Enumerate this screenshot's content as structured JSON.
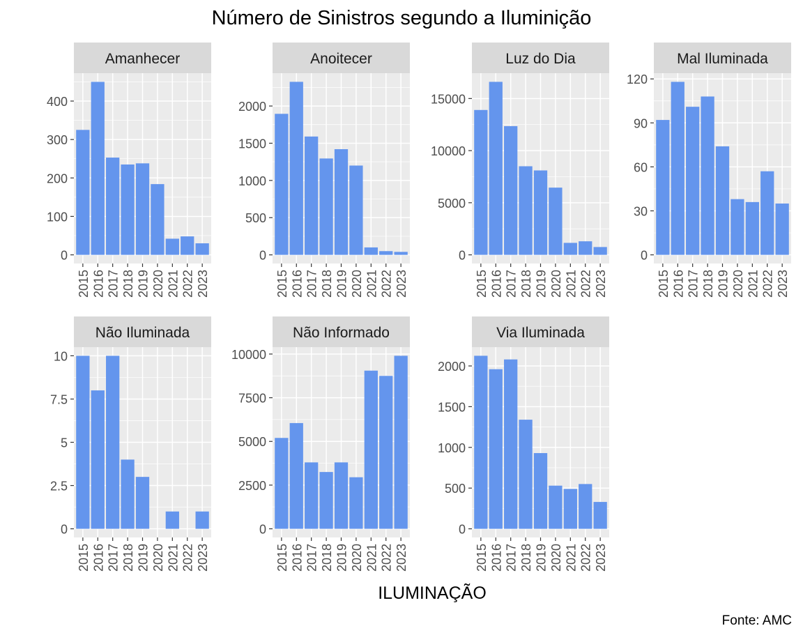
{
  "chart_data": {
    "type": "bar",
    "title": "Número de Sinistros segundo a Iluminição",
    "xlabel": "ILUMINAÇÃO",
    "ylabel": "",
    "caption": "Fonte: AMC",
    "categories": [
      "2015",
      "2016",
      "2017",
      "2018",
      "2019",
      "2020",
      "2021",
      "2022",
      "2023"
    ],
    "bar_color": "#6495ED",
    "panel_background": "#EBEBEB",
    "strip_background": "#D9D9D9",
    "grid": true,
    "facets": [
      {
        "name": "Amanhecer",
        "values": [
          325,
          450,
          253,
          235,
          238,
          184,
          42,
          48,
          30
        ],
        "ylim": [
          -22.5,
          472.5
        ],
        "yticks": [
          0,
          100,
          200,
          300,
          400
        ]
      },
      {
        "name": "Anoitecer",
        "values": [
          1895,
          2325,
          1590,
          1295,
          1420,
          1200,
          100,
          50,
          40
        ],
        "ylim": [
          -116,
          2441
        ],
        "yticks": [
          0,
          500,
          1000,
          1500,
          2000
        ]
      },
      {
        "name": "Luz do Dia",
        "values": [
          13900,
          16600,
          12350,
          8500,
          8100,
          6450,
          1150,
          1300,
          750
        ],
        "ylim": [
          -830,
          17430
        ],
        "yticks": [
          0,
          5000,
          10000,
          15000
        ]
      },
      {
        "name": "Mal Iluminada",
        "values": [
          92,
          118,
          101,
          108,
          74,
          38,
          36,
          57,
          35
        ],
        "ylim": [
          -5.9,
          123.9
        ],
        "yticks": [
          0,
          30,
          60,
          90,
          120
        ]
      },
      {
        "name": "Não Iluminada",
        "values": [
          10,
          8,
          10,
          4,
          3,
          0,
          1,
          0,
          1
        ],
        "ylim": [
          -0.5,
          10.5
        ],
        "yticks": [
          0,
          2.5,
          5,
          7.5,
          10
        ]
      },
      {
        "name": "Não Informado",
        "values": [
          5200,
          6050,
          3800,
          3250,
          3800,
          2950,
          9050,
          8750,
          9900
        ],
        "ylim": [
          -495,
          10395
        ],
        "yticks": [
          0,
          2500,
          5000,
          7500,
          10000
        ]
      },
      {
        "name": "Via Iluminada",
        "values": [
          2125,
          1960,
          2080,
          1340,
          930,
          530,
          490,
          550,
          330
        ],
        "ylim": [
          -106,
          2231
        ],
        "yticks": [
          0,
          500,
          1000,
          1500,
          2000
        ]
      }
    ]
  }
}
